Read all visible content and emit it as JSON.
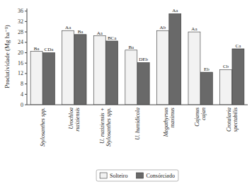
{
  "chart_data": {
    "type": "bar",
    "categories": [
      "Stylosanthes spp.",
      "Urochloa\nruziziensis",
      "U. ruziziensis +\nStylosanthes spp.",
      "U. humidicola",
      "Megathyrsus\nmaximus",
      "Cajanus\ncajan",
      "Crotalaria\nspectabilis"
    ],
    "series": [
      {
        "name": "Solteiro",
        "color": "#f2f2f2",
        "values": [
          20.5,
          28.5,
          26.5,
          21.0,
          28.5,
          28.0,
          13.5
        ],
        "labels": [
          "Ba",
          "Aa",
          "Aa",
          "Ba",
          "Ab",
          "Aa",
          "Cb"
        ]
      },
      {
        "name": "Consórciado",
        "color": "#696969",
        "values": [
          20.0,
          27.0,
          24.5,
          16.2,
          35.0,
          12.5,
          21.5
        ],
        "labels": [
          "CDa",
          "Ba",
          "BCa",
          "DEb",
          "Aa",
          "Eb",
          "Ca"
        ]
      }
    ],
    "ylabel": "Produtividade (Mg ha⁻¹)",
    "ylim": [
      0,
      37
    ],
    "yticks": [
      0,
      4,
      8,
      12,
      16,
      20,
      24,
      28,
      32,
      36
    ],
    "grid": false,
    "legend": "bottom"
  }
}
